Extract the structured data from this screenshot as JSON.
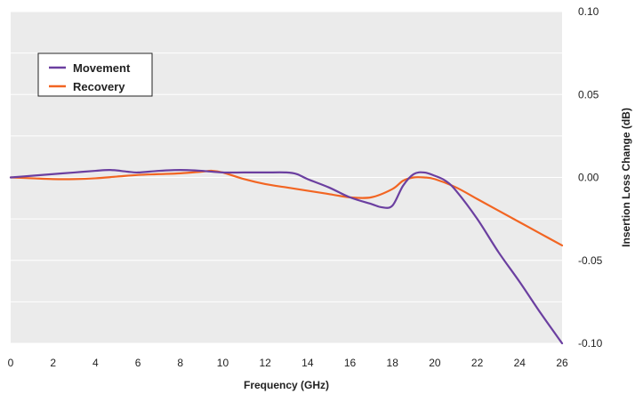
{
  "chart_data": {
    "type": "line",
    "xlabel": "Frequency (GHz)",
    "ylabel": "Insertion Loss Change (dB)",
    "xlim": [
      0,
      26
    ],
    "ylim": [
      -0.1,
      0.1
    ],
    "x_ticks": [
      0,
      2,
      4,
      6,
      8,
      10,
      12,
      14,
      16,
      18,
      20,
      22,
      24,
      26
    ],
    "x_tick_labels": [
      "0",
      "2",
      "4",
      "6",
      "8",
      "10",
      "12",
      "14",
      "16",
      "18",
      "20",
      "22",
      "24",
      "26"
    ],
    "y_ticks": [
      0.1,
      0.05,
      0.0,
      -0.05,
      -0.1
    ],
    "y_tick_labels": [
      "0.10",
      "0.05",
      "0.00",
      "-0.05",
      "-0.10"
    ],
    "grid": "horizontal",
    "y_axis_side": "right",
    "legend_position": "top-left",
    "background_color": "#ebebeb",
    "grid_color": "#ffffff",
    "series": [
      {
        "name": "Movement",
        "color": "#6b3fa0",
        "x": [
          0,
          1,
          2,
          3,
          4,
          4.7,
          5.5,
          6,
          7,
          8,
          9,
          10,
          11,
          12,
          13,
          13.5,
          14,
          15,
          16,
          17,
          17.5,
          18,
          18.5,
          19,
          19.5,
          20,
          20.5,
          21,
          22,
          23,
          24,
          25,
          26
        ],
        "y": [
          0.0,
          0.001,
          0.002,
          0.003,
          0.004,
          0.0045,
          0.0035,
          0.003,
          0.004,
          0.0045,
          0.004,
          0.003,
          0.003,
          0.003,
          0.003,
          0.002,
          -0.001,
          -0.006,
          -0.012,
          -0.016,
          -0.018,
          -0.017,
          -0.005,
          0.002,
          0.003,
          0.001,
          -0.002,
          -0.008,
          -0.025,
          -0.045,
          -0.063,
          -0.082,
          -0.1
        ]
      },
      {
        "name": "Recovery",
        "color": "#f26522",
        "x": [
          0,
          1,
          2,
          3,
          4,
          5,
          6,
          7,
          8,
          9,
          9.5,
          10,
          11,
          12,
          13,
          14,
          15,
          16,
          17,
          18,
          18.5,
          19,
          19.5,
          20,
          21,
          22,
          23,
          24,
          25,
          26
        ],
        "y": [
          0.0,
          -0.0005,
          -0.001,
          -0.001,
          -0.0005,
          0.0005,
          0.0015,
          0.002,
          0.0025,
          0.0035,
          0.004,
          0.003,
          -0.001,
          -0.004,
          -0.006,
          -0.008,
          -0.01,
          -0.012,
          -0.012,
          -0.007,
          -0.002,
          0.0,
          0.0,
          -0.001,
          -0.006,
          -0.013,
          -0.02,
          -0.027,
          -0.034,
          -0.041
        ]
      }
    ]
  }
}
